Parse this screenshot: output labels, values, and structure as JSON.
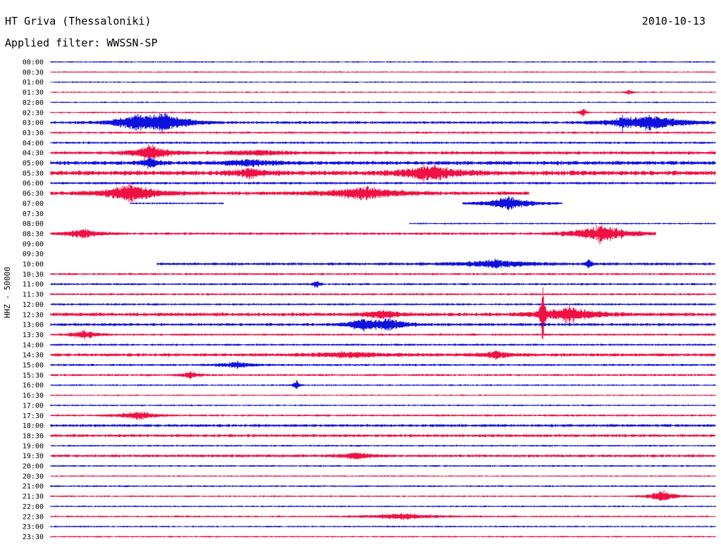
{
  "header": {
    "station": "HT Griva (Thessaloniki)",
    "filter": "Applied filter: WWSSN-SP",
    "date": "2010-10-13"
  },
  "chart_data": {
    "type": "line",
    "title": "HT Griva (Thessaloniki)",
    "subtitle": "Applied filter: WWSSN-SP",
    "ylabel": "HHZ - 50000",
    "date": "2010-10-13",
    "colors": {
      "blue": "#1010dd",
      "red": "#ee1144"
    },
    "rows": [
      {
        "label": "00:00",
        "color": "blue",
        "noise": 0.8,
        "start": 0,
        "end": 1
      },
      {
        "label": "00:30",
        "color": "red",
        "noise": 0.8,
        "start": 0,
        "end": 1
      },
      {
        "label": "01:00",
        "color": "blue",
        "noise": 0.8,
        "start": 0,
        "end": 1
      },
      {
        "label": "01:30",
        "color": "red",
        "noise": 0.8,
        "start": 0,
        "end": 1,
        "events": [
          {
            "t": 0.87,
            "amp": 5,
            "dur": 0.004
          }
        ]
      },
      {
        "label": "02:00",
        "color": "blue",
        "noise": 0.8,
        "start": 0,
        "end": 1
      },
      {
        "label": "02:30",
        "color": "red",
        "noise": 0.9,
        "start": 0,
        "end": 1,
        "events": [
          {
            "t": 0.8,
            "amp": 8,
            "dur": 0.004
          }
        ]
      },
      {
        "label": "03:00",
        "color": "blue",
        "noise": 1.5,
        "start": 0,
        "end": 1,
        "events": [
          {
            "t": 0.13,
            "amp": 11,
            "dur": 0.03
          },
          {
            "t": 0.17,
            "amp": 13,
            "dur": 0.03
          },
          {
            "t": 0.9,
            "amp": 13,
            "dur": 0.04
          },
          {
            "t": 0.86,
            "amp": 10,
            "dur": 0.004
          }
        ]
      },
      {
        "label": "03:30",
        "color": "red",
        "noise": 1.2,
        "start": 0,
        "end": 1
      },
      {
        "label": "04:00",
        "color": "blue",
        "noise": 1.2,
        "start": 0,
        "end": 1
      },
      {
        "label": "04:30",
        "color": "red",
        "noise": 1.8,
        "start": 0,
        "end": 1,
        "events": [
          {
            "t": 0.15,
            "amp": 14,
            "dur": 0.02
          },
          {
            "t": 0.31,
            "amp": 4,
            "dur": 0.04
          }
        ]
      },
      {
        "label": "05:00",
        "color": "blue",
        "noise": 2.2,
        "start": 0,
        "end": 1,
        "events": [
          {
            "t": 0.15,
            "amp": 9,
            "dur": 0.01
          },
          {
            "t": 0.3,
            "amp": 5,
            "dur": 0.03
          }
        ]
      },
      {
        "label": "05:30",
        "color": "red",
        "noise": 2.6,
        "start": 0,
        "end": 1,
        "events": [
          {
            "t": 0.3,
            "amp": 7,
            "dur": 0.02
          },
          {
            "t": 0.57,
            "amp": 14,
            "dur": 0.03
          }
        ]
      },
      {
        "label": "06:00",
        "color": "blue",
        "noise": 1.4,
        "start": 0,
        "end": 1
      },
      {
        "label": "06:30",
        "color": "red",
        "noise": 2.0,
        "start": 0,
        "end": 0.72,
        "events": [
          {
            "t": 0.12,
            "amp": 15,
            "dur": 0.03
          },
          {
            "t": 0.47,
            "amp": 11,
            "dur": 0.04
          }
        ]
      },
      {
        "label": "07:00",
        "color": "blue",
        "noise": 1.0,
        "start": 0.12,
        "end": 0.26,
        "events": [
          {
            "t": 0.69,
            "amp": 13,
            "dur": 0.025
          }
        ],
        "segments": [
          [
            0.12,
            0.26
          ],
          [
            0.62,
            0.77
          ]
        ]
      },
      {
        "label": "07:30",
        "color": "red",
        "noise": 0,
        "start": 0,
        "end": 0
      },
      {
        "label": "08:00",
        "color": "blue",
        "noise": 0.9,
        "start": 0.54,
        "end": 1
      },
      {
        "label": "08:30",
        "color": "red",
        "noise": 1.4,
        "start": 0,
        "end": 0.91,
        "events": [
          {
            "t": 0.05,
            "amp": 8,
            "dur": 0.02
          },
          {
            "t": 0.83,
            "amp": 16,
            "dur": 0.03
          }
        ]
      },
      {
        "label": "09:00",
        "color": "blue",
        "noise": 0,
        "start": 0,
        "end": 0
      },
      {
        "label": "09:30",
        "color": "red",
        "noise": 0,
        "start": 0,
        "end": 0
      },
      {
        "label": "10:00",
        "color": "blue",
        "noise": 1.6,
        "start": 0.16,
        "end": 1,
        "events": [
          {
            "t": 0.67,
            "amp": 7,
            "dur": 0.04
          },
          {
            "t": 0.81,
            "amp": 9,
            "dur": 0.004
          }
        ]
      },
      {
        "label": "10:30",
        "color": "red",
        "noise": 1.2,
        "start": 0,
        "end": 1
      },
      {
        "label": "11:00",
        "color": "blue",
        "noise": 1.2,
        "start": 0,
        "end": 1,
        "events": [
          {
            "t": 0.4,
            "amp": 8,
            "dur": 0.004
          }
        ]
      },
      {
        "label": "11:30",
        "color": "red",
        "noise": 1.2,
        "start": 0,
        "end": 1
      },
      {
        "label": "12:00",
        "color": "blue",
        "noise": 1.2,
        "start": 0,
        "end": 1
      },
      {
        "label": "12:30",
        "color": "red",
        "noise": 2.0,
        "start": 0,
        "end": 1,
        "events": [
          {
            "t": 0.5,
            "amp": 7,
            "dur": 0.02
          },
          {
            "t": 0.78,
            "amp": 14,
            "dur": 0.03
          },
          {
            "t": 0.74,
            "amp": 80,
            "dur": 0.002
          }
        ]
      },
      {
        "label": "13:00",
        "color": "blue",
        "noise": 1.6,
        "start": 0,
        "end": 1,
        "events": [
          {
            "t": 0.47,
            "amp": 9,
            "dur": 0.02
          },
          {
            "t": 0.51,
            "amp": 9,
            "dur": 0.02
          }
        ]
      },
      {
        "label": "13:30",
        "color": "red",
        "noise": 1.2,
        "start": 0,
        "end": 1,
        "events": [
          {
            "t": 0.05,
            "amp": 7,
            "dur": 0.015
          }
        ]
      },
      {
        "label": "14:00",
        "color": "blue",
        "noise": 1.2,
        "start": 0,
        "end": 1
      },
      {
        "label": "14:30",
        "color": "red",
        "noise": 1.8,
        "start": 0,
        "end": 1,
        "events": [
          {
            "t": 0.45,
            "amp": 4,
            "dur": 0.05
          },
          {
            "t": 0.67,
            "amp": 6,
            "dur": 0.02
          }
        ]
      },
      {
        "label": "15:00",
        "color": "blue",
        "noise": 1.2,
        "start": 0,
        "end": 1,
        "events": [
          {
            "t": 0.28,
            "amp": 5,
            "dur": 0.02
          }
        ]
      },
      {
        "label": "15:30",
        "color": "red",
        "noise": 1.2,
        "start": 0,
        "end": 1,
        "events": [
          {
            "t": 0.21,
            "amp": 6,
            "dur": 0.01
          }
        ]
      },
      {
        "label": "16:00",
        "color": "blue",
        "noise": 0.9,
        "start": 0,
        "end": 1,
        "events": [
          {
            "t": 0.37,
            "amp": 8,
            "dur": 0.004
          }
        ]
      },
      {
        "label": "16:30",
        "color": "red",
        "noise": 0.8,
        "start": 0,
        "end": 1
      },
      {
        "label": "17:00",
        "color": "blue",
        "noise": 0.9,
        "start": 0,
        "end": 1
      },
      {
        "label": "17:30",
        "color": "red",
        "noise": 1.2,
        "start": 0,
        "end": 1,
        "events": [
          {
            "t": 0.13,
            "amp": 7,
            "dur": 0.02
          }
        ]
      },
      {
        "label": "18:00",
        "color": "blue",
        "noise": 1.6,
        "start": 0,
        "end": 1
      },
      {
        "label": "18:30",
        "color": "red",
        "noise": 1.6,
        "start": 0,
        "end": 1
      },
      {
        "label": "19:00",
        "color": "blue",
        "noise": 1.0,
        "start": 0,
        "end": 1
      },
      {
        "label": "19:30",
        "color": "red",
        "noise": 1.6,
        "start": 0,
        "end": 1,
        "events": [
          {
            "t": 0.46,
            "amp": 5,
            "dur": 0.02
          }
        ]
      },
      {
        "label": "20:00",
        "color": "blue",
        "noise": 1.0,
        "start": 0,
        "end": 1
      },
      {
        "label": "20:30",
        "color": "red",
        "noise": 0.8,
        "start": 0,
        "end": 1
      },
      {
        "label": "21:00",
        "color": "blue",
        "noise": 1.0,
        "start": 0,
        "end": 1
      },
      {
        "label": "21:30",
        "color": "red",
        "noise": 0.9,
        "start": 0,
        "end": 1,
        "events": [
          {
            "t": 0.92,
            "amp": 10,
            "dur": 0.015
          }
        ]
      },
      {
        "label": "22:00",
        "color": "blue",
        "noise": 0.9,
        "start": 0,
        "end": 1
      },
      {
        "label": "22:30",
        "color": "red",
        "noise": 1.0,
        "start": 0,
        "end": 1,
        "events": [
          {
            "t": 0.53,
            "amp": 5,
            "dur": 0.04
          }
        ]
      },
      {
        "label": "23:00",
        "color": "blue",
        "noise": 0.9,
        "start": 0,
        "end": 1
      },
      {
        "label": "23:30",
        "color": "red",
        "noise": 0.9,
        "start": 0,
        "end": 1
      }
    ]
  }
}
